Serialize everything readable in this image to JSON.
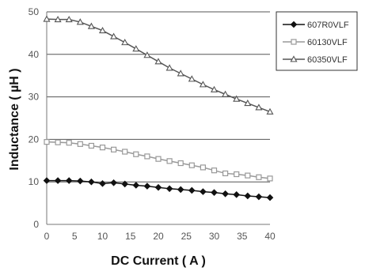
{
  "chart_data": {
    "type": "line",
    "title": "",
    "xlabel": "DC Current ( A )",
    "ylabel": "Inductance ( µH )",
    "xlim": [
      0,
      40
    ],
    "ylim": [
      0,
      50
    ],
    "xticks": [
      "0",
      "5",
      "10",
      "15",
      "20",
      "25",
      "30",
      "35",
      "40"
    ],
    "yticks": [
      "0",
      "10",
      "20",
      "30",
      "40",
      "50"
    ],
    "grid": "horizontal",
    "legend_position": "top-right",
    "x": [
      0,
      2,
      4,
      6,
      8,
      10,
      12,
      14,
      16,
      18,
      20,
      22,
      24,
      26,
      28,
      30,
      32,
      34,
      36,
      38,
      40
    ],
    "series": [
      {
        "name": "607R0VLF",
        "marker": "diamond-filled",
        "color": "#111111",
        "values": [
          10.3,
          10.3,
          10.3,
          10.2,
          10.0,
          9.6,
          9.8,
          9.5,
          9.2,
          9.0,
          8.7,
          8.4,
          8.2,
          8.0,
          7.7,
          7.5,
          7.2,
          7.0,
          6.7,
          6.5,
          6.3
        ]
      },
      {
        "name": "60130VLF",
        "marker": "square-open",
        "color": "#999999",
        "values": [
          19.4,
          19.3,
          19.2,
          18.9,
          18.5,
          18.1,
          17.6,
          17.1,
          16.5,
          16.0,
          15.4,
          14.9,
          14.4,
          13.9,
          13.4,
          12.7,
          12.0,
          11.8,
          11.5,
          11.1,
          10.8
        ]
      },
      {
        "name": "60350VLF",
        "marker": "triangle-open",
        "color": "#555555",
        "values": [
          48.3,
          48.2,
          48.2,
          47.6,
          46.6,
          45.6,
          44.2,
          42.8,
          41.3,
          39.8,
          38.3,
          36.8,
          35.5,
          34.2,
          32.9,
          31.7,
          30.6,
          29.5,
          28.5,
          27.5,
          26.5
        ]
      }
    ]
  }
}
